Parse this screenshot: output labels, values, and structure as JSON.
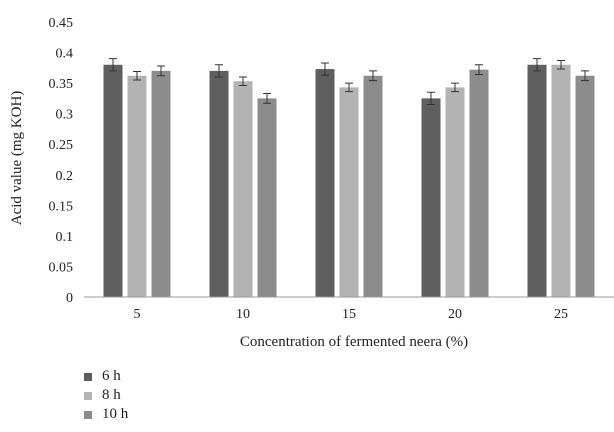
{
  "chart_data": {
    "type": "bar",
    "title": "",
    "xlabel": "Concentration of fermented neera (%)",
    "ylabel": "Acid value (mg KOH)",
    "categories": [
      "5",
      "10",
      "15",
      "20",
      "25"
    ],
    "ylim": [
      0,
      0.45
    ],
    "yticks": [
      "0",
      "0.05",
      "0.1",
      "0.15",
      "0.2",
      "0.25",
      "0.3",
      "0.35",
      "0.4",
      "0.45"
    ],
    "grid": false,
    "legend_position": "bottom-left",
    "error_bars": true,
    "series": [
      {
        "name": "6 h",
        "color": "#5f5f5f",
        "values": [
          0.38,
          0.37,
          0.373,
          0.325,
          0.38
        ],
        "errors": [
          0.01,
          0.01,
          0.01,
          0.01,
          0.01
        ]
      },
      {
        "name": "8 h",
        "color": "#b3b3b3",
        "values": [
          0.362,
          0.353,
          0.343,
          0.343,
          0.38
        ],
        "errors": [
          0.007,
          0.007,
          0.007,
          0.007,
          0.007
        ]
      },
      {
        "name": "10 h",
        "color": "#8c8c8c",
        "values": [
          0.37,
          0.325,
          0.362,
          0.372,
          0.362
        ],
        "errors": [
          0.008,
          0.008,
          0.008,
          0.008,
          0.008
        ]
      }
    ]
  }
}
